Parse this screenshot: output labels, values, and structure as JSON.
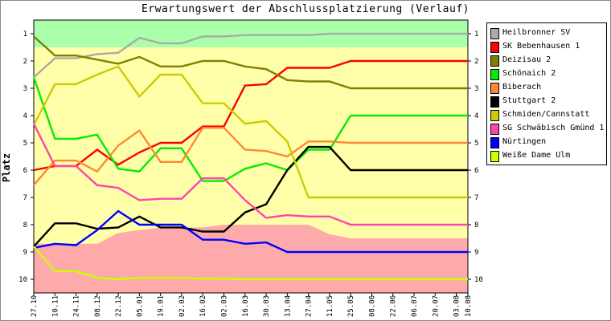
{
  "chart_data": {
    "type": "line",
    "title": "Erwartungswert der Abschlussplatzierung (Verlauf)",
    "ylabel": "Platz",
    "xlabel": "",
    "ylim": [
      1,
      10
    ],
    "y_inverted": true,
    "yticks": [
      "1",
      "2",
      "3",
      "4",
      "5",
      "6",
      "7",
      "8",
      "9",
      "10"
    ],
    "categories": [
      "27.10",
      "10.11",
      "24.11",
      "08.12",
      "22.12",
      "05.01",
      "19.01",
      "02.02",
      "16.02",
      "02.03",
      "16.03",
      "30.03",
      "13.04",
      "27.04",
      "11.05",
      "25.05",
      "08.06",
      "22.06",
      "06.07",
      "20.07",
      "03.08",
      "10.08"
    ],
    "x_positions": [
      0,
      1,
      2,
      3,
      4,
      5,
      6,
      7,
      8,
      9,
      10,
      11,
      12,
      13,
      14,
      15,
      16,
      17,
      18,
      19,
      20,
      20.55
    ],
    "bands": [
      {
        "name": "promotion",
        "color": "#aaffaa",
        "values": [
          1.5,
          1.5,
          1.5,
          1.5,
          1.5,
          1.5,
          1.5,
          1.5,
          1.5,
          1.5,
          1.5,
          1.5,
          1.5,
          1.5,
          1.5,
          1.5,
          1.5,
          1.5,
          1.5,
          1.5,
          1.5,
          1.5
        ]
      },
      {
        "name": "relegation",
        "color": "#ffaaaa",
        "values": [
          8.7,
          8.7,
          8.7,
          8.7,
          8.3,
          8.2,
          8.1,
          8.1,
          8.1,
          8.0,
          8.0,
          8.0,
          8.0,
          8.0,
          8.35,
          8.5,
          8.5,
          8.5,
          8.5,
          8.5,
          8.5,
          8.5
        ]
      }
    ],
    "band_middle_color": "#ffffaa",
    "legend_position": "right",
    "series": [
      {
        "name": "Heilbronner SV",
        "color": "#aaaaaa",
        "values": [
          2.6,
          1.9,
          1.9,
          1.75,
          1.7,
          1.15,
          1.35,
          1.35,
          1.1,
          1.1,
          1.05,
          1.05,
          1.05,
          1.05,
          1.0,
          1.0,
          1.0,
          1.0,
          1.0,
          1.0,
          1.0,
          1.0
        ]
      },
      {
        "name": "SK Bebenhausen 1",
        "color": "#ff0000",
        "values": [
          6.0,
          5.85,
          5.85,
          5.25,
          5.8,
          5.35,
          5.0,
          5.0,
          4.4,
          4.4,
          2.9,
          2.85,
          2.25,
          2.25,
          2.25,
          2.0,
          2.0,
          2.0,
          2.0,
          2.0,
          2.0,
          2.0
        ]
      },
      {
        "name": "Deizisau 2",
        "color": "#808000",
        "values": [
          1.1,
          1.8,
          1.8,
          1.95,
          2.1,
          1.85,
          2.2,
          2.2,
          2.0,
          2.0,
          2.2,
          2.3,
          2.7,
          2.75,
          2.75,
          3.0,
          3.0,
          3.0,
          3.0,
          3.0,
          3.0,
          3.0
        ]
      },
      {
        "name": "Schönaich 2",
        "color": "#00ee00",
        "values": [
          2.6,
          4.85,
          4.85,
          4.7,
          5.95,
          6.05,
          5.2,
          5.2,
          6.4,
          6.4,
          5.95,
          5.75,
          6.0,
          5.25,
          5.25,
          4.0,
          4.0,
          4.0,
          4.0,
          4.0,
          4.0,
          4.0
        ]
      },
      {
        "name": "Biberach",
        "color": "#ff8833",
        "values": [
          6.55,
          5.65,
          5.65,
          6.05,
          5.1,
          4.55,
          5.7,
          5.7,
          4.45,
          4.45,
          5.25,
          5.3,
          5.5,
          4.95,
          4.95,
          5.0,
          5.0,
          5.0,
          5.0,
          5.0,
          5.0,
          5.0
        ]
      },
      {
        "name": "Stuttgart 2",
        "color": "#000000",
        "values": [
          8.8,
          7.95,
          7.95,
          8.15,
          8.1,
          7.7,
          8.1,
          8.1,
          8.25,
          8.25,
          7.55,
          7.25,
          6.0,
          5.15,
          5.15,
          6.0,
          6.0,
          6.0,
          6.0,
          6.0,
          6.0,
          6.0
        ]
      },
      {
        "name": "Schmiden/Cannstatt",
        "color": "#cccc00",
        "values": [
          4.35,
          2.85,
          2.85,
          2.5,
          2.2,
          3.3,
          2.5,
          2.5,
          3.55,
          3.55,
          4.3,
          4.2,
          4.95,
          7.0,
          7.0,
          7.0,
          7.0,
          7.0,
          7.0,
          7.0,
          7.0,
          7.0
        ]
      },
      {
        "name": "SG Schwäbisch Gmünd 1",
        "color": "#ff44aa",
        "values": [
          4.3,
          5.85,
          5.85,
          6.55,
          6.65,
          7.1,
          7.05,
          7.05,
          6.3,
          6.3,
          7.1,
          7.75,
          7.65,
          7.7,
          7.7,
          8.0,
          8.0,
          8.0,
          8.0,
          8.0,
          8.0,
          8.0
        ]
      },
      {
        "name": "Nürtingen",
        "color": "#0000ff",
        "values": [
          8.85,
          8.7,
          8.75,
          8.2,
          7.5,
          8.0,
          8.0,
          8.0,
          8.55,
          8.55,
          8.7,
          8.65,
          9.0,
          9.0,
          9.0,
          9.0,
          9.0,
          9.0,
          9.0,
          9.0,
          9.0,
          9.0
        ]
      },
      {
        "name": "Weiße Dame Ulm",
        "color": "#ccff00",
        "values": [
          8.8,
          9.7,
          9.7,
          9.95,
          10.0,
          9.95,
          9.95,
          9.95,
          9.98,
          9.98,
          10.0,
          10.0,
          10.0,
          10.0,
          10.0,
          10.0,
          10.0,
          10.0,
          10.0,
          10.0,
          10.0,
          10.0
        ]
      }
    ],
    "grid": false
  }
}
